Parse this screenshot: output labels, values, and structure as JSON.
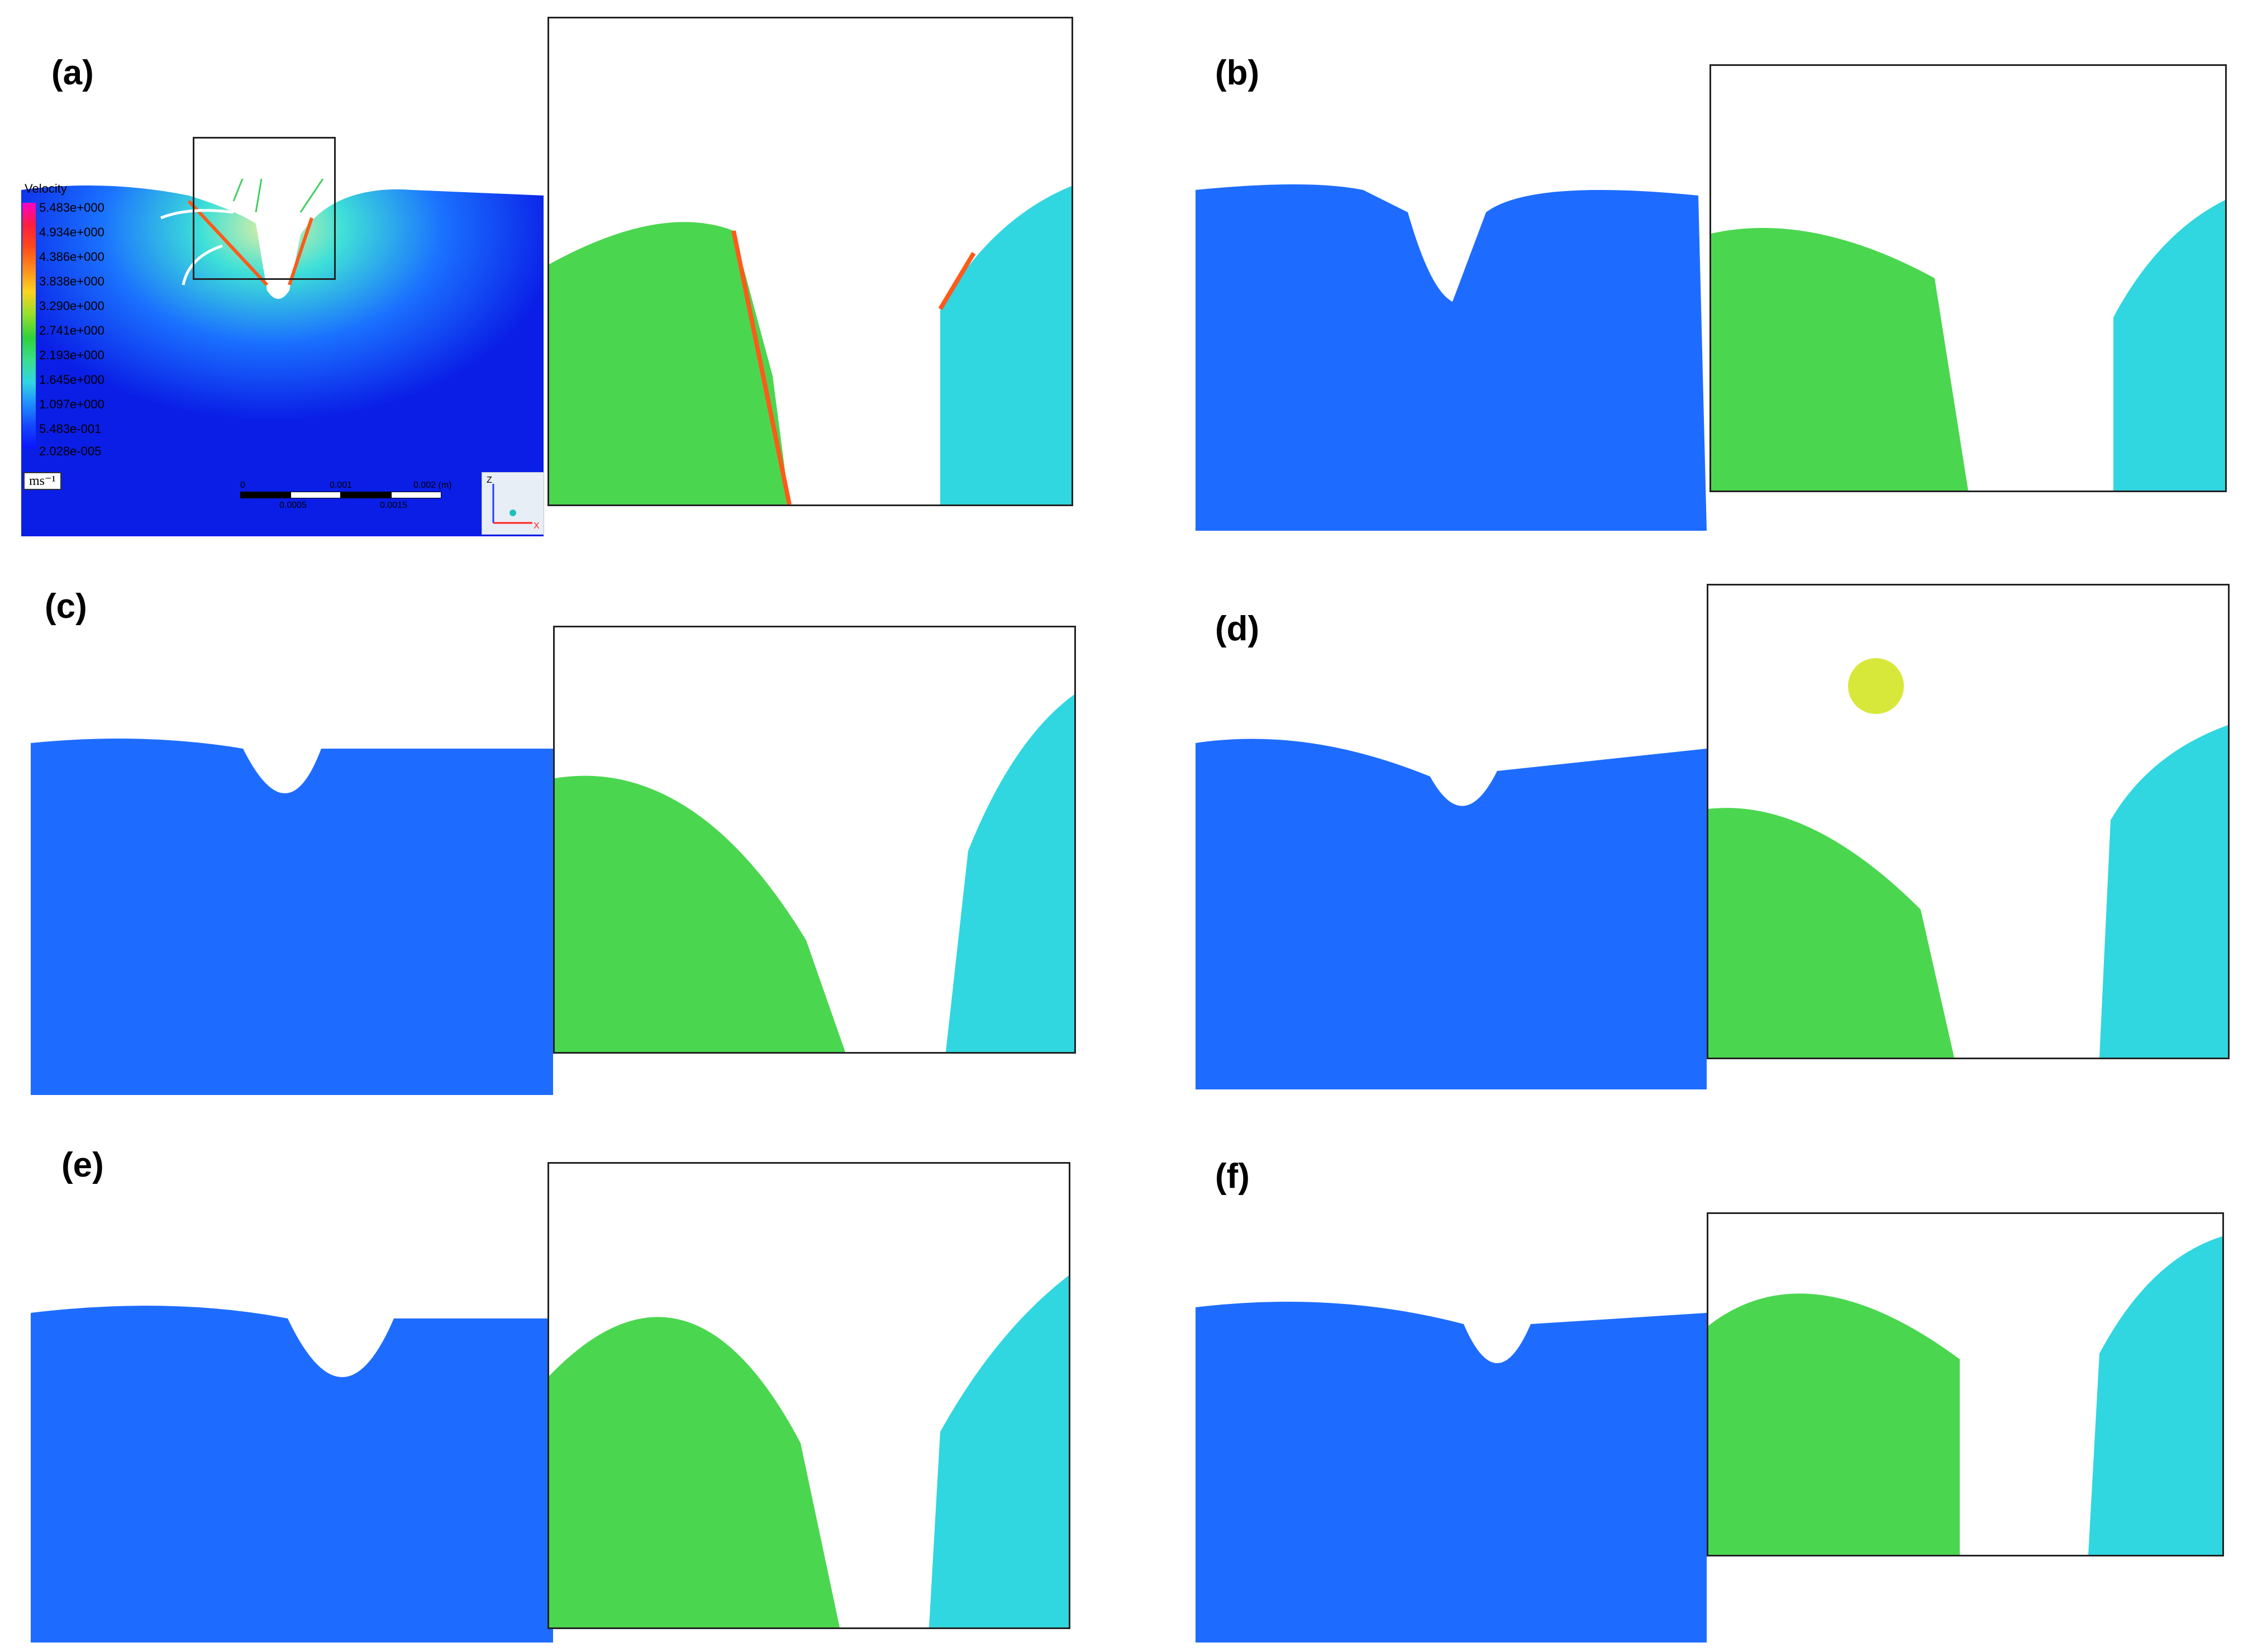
{
  "panels": [
    {
      "label": "(a)"
    },
    {
      "label": "(b)"
    },
    {
      "label": "(c)"
    },
    {
      "label": "(d)"
    },
    {
      "label": "(e)"
    },
    {
      "label": "(f)"
    }
  ],
  "legend": {
    "title": "Velocity",
    "ticks": [
      "5.483e+000",
      "4.934e+000",
      "4.386e+000",
      "3.838e+000",
      "3.290e+000",
      "2.741e+000",
      "2.193e+000",
      "1.645e+000",
      "1.097e+000",
      "5.483e-001",
      "2.028e-005"
    ],
    "unit": "ms⁻¹"
  },
  "scalebar": {
    "top": [
      "0",
      "0.001",
      "0.002 (m)"
    ],
    "bottom": [
      "0.0005",
      "0.0015"
    ]
  },
  "axes": {
    "z": "Z",
    "x": "X"
  },
  "colors": {
    "deep_blue": "#0a1ee6",
    "cyan": "#34d7e8",
    "green": "#3fd24a",
    "yellow": "#e8e63a",
    "red": "#ff3a1a",
    "magenta": "#ff00c8"
  }
}
